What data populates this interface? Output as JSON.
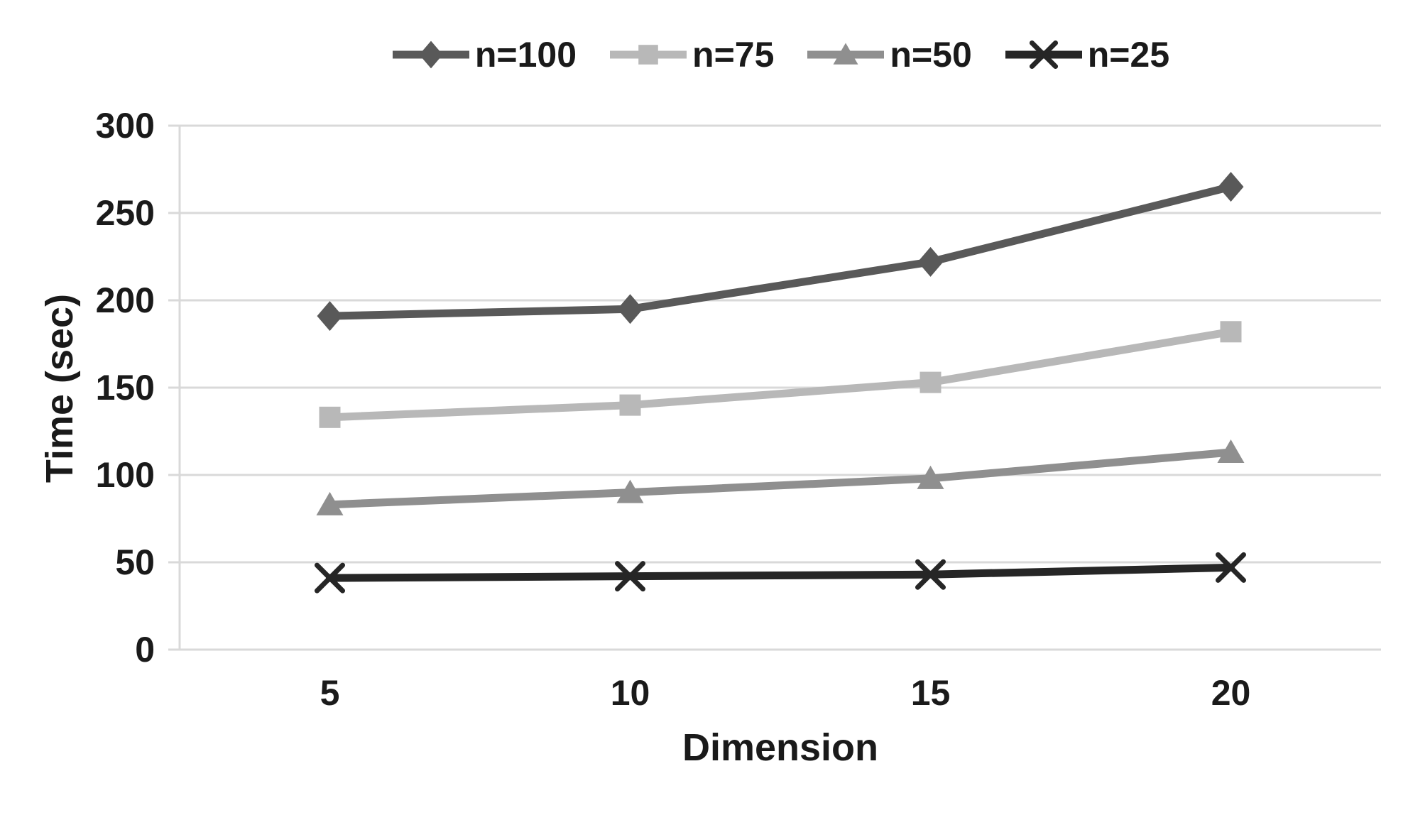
{
  "chart_data": {
    "type": "line",
    "title": "",
    "xlabel": "Dimension",
    "ylabel": "Time (sec)",
    "categories": [
      5,
      10,
      15,
      20
    ],
    "series": [
      {
        "name": "n=100",
        "marker": "diamond",
        "color": "#595959",
        "values": [
          191,
          195,
          222,
          265
        ]
      },
      {
        "name": "n=75",
        "marker": "square",
        "color": "#b8b8b8",
        "values": [
          133,
          140,
          153,
          182
        ]
      },
      {
        "name": "n=50",
        "marker": "triangle",
        "color": "#8f8f8f",
        "values": [
          83,
          90,
          98,
          113
        ]
      },
      {
        "name": "n=25",
        "marker": "x",
        "color": "#262626",
        "values": [
          41,
          42,
          43,
          47
        ]
      }
    ],
    "ylim": [
      0,
      300
    ],
    "yticks": [
      0,
      50,
      100,
      150,
      200,
      250,
      300
    ],
    "grid": true,
    "legend_position": "top-center",
    "grid_color": "#d9d9d9",
    "axis_color": "#d9d9d9",
    "text_color": "#1a1a1a",
    "background": "#ffffff"
  }
}
